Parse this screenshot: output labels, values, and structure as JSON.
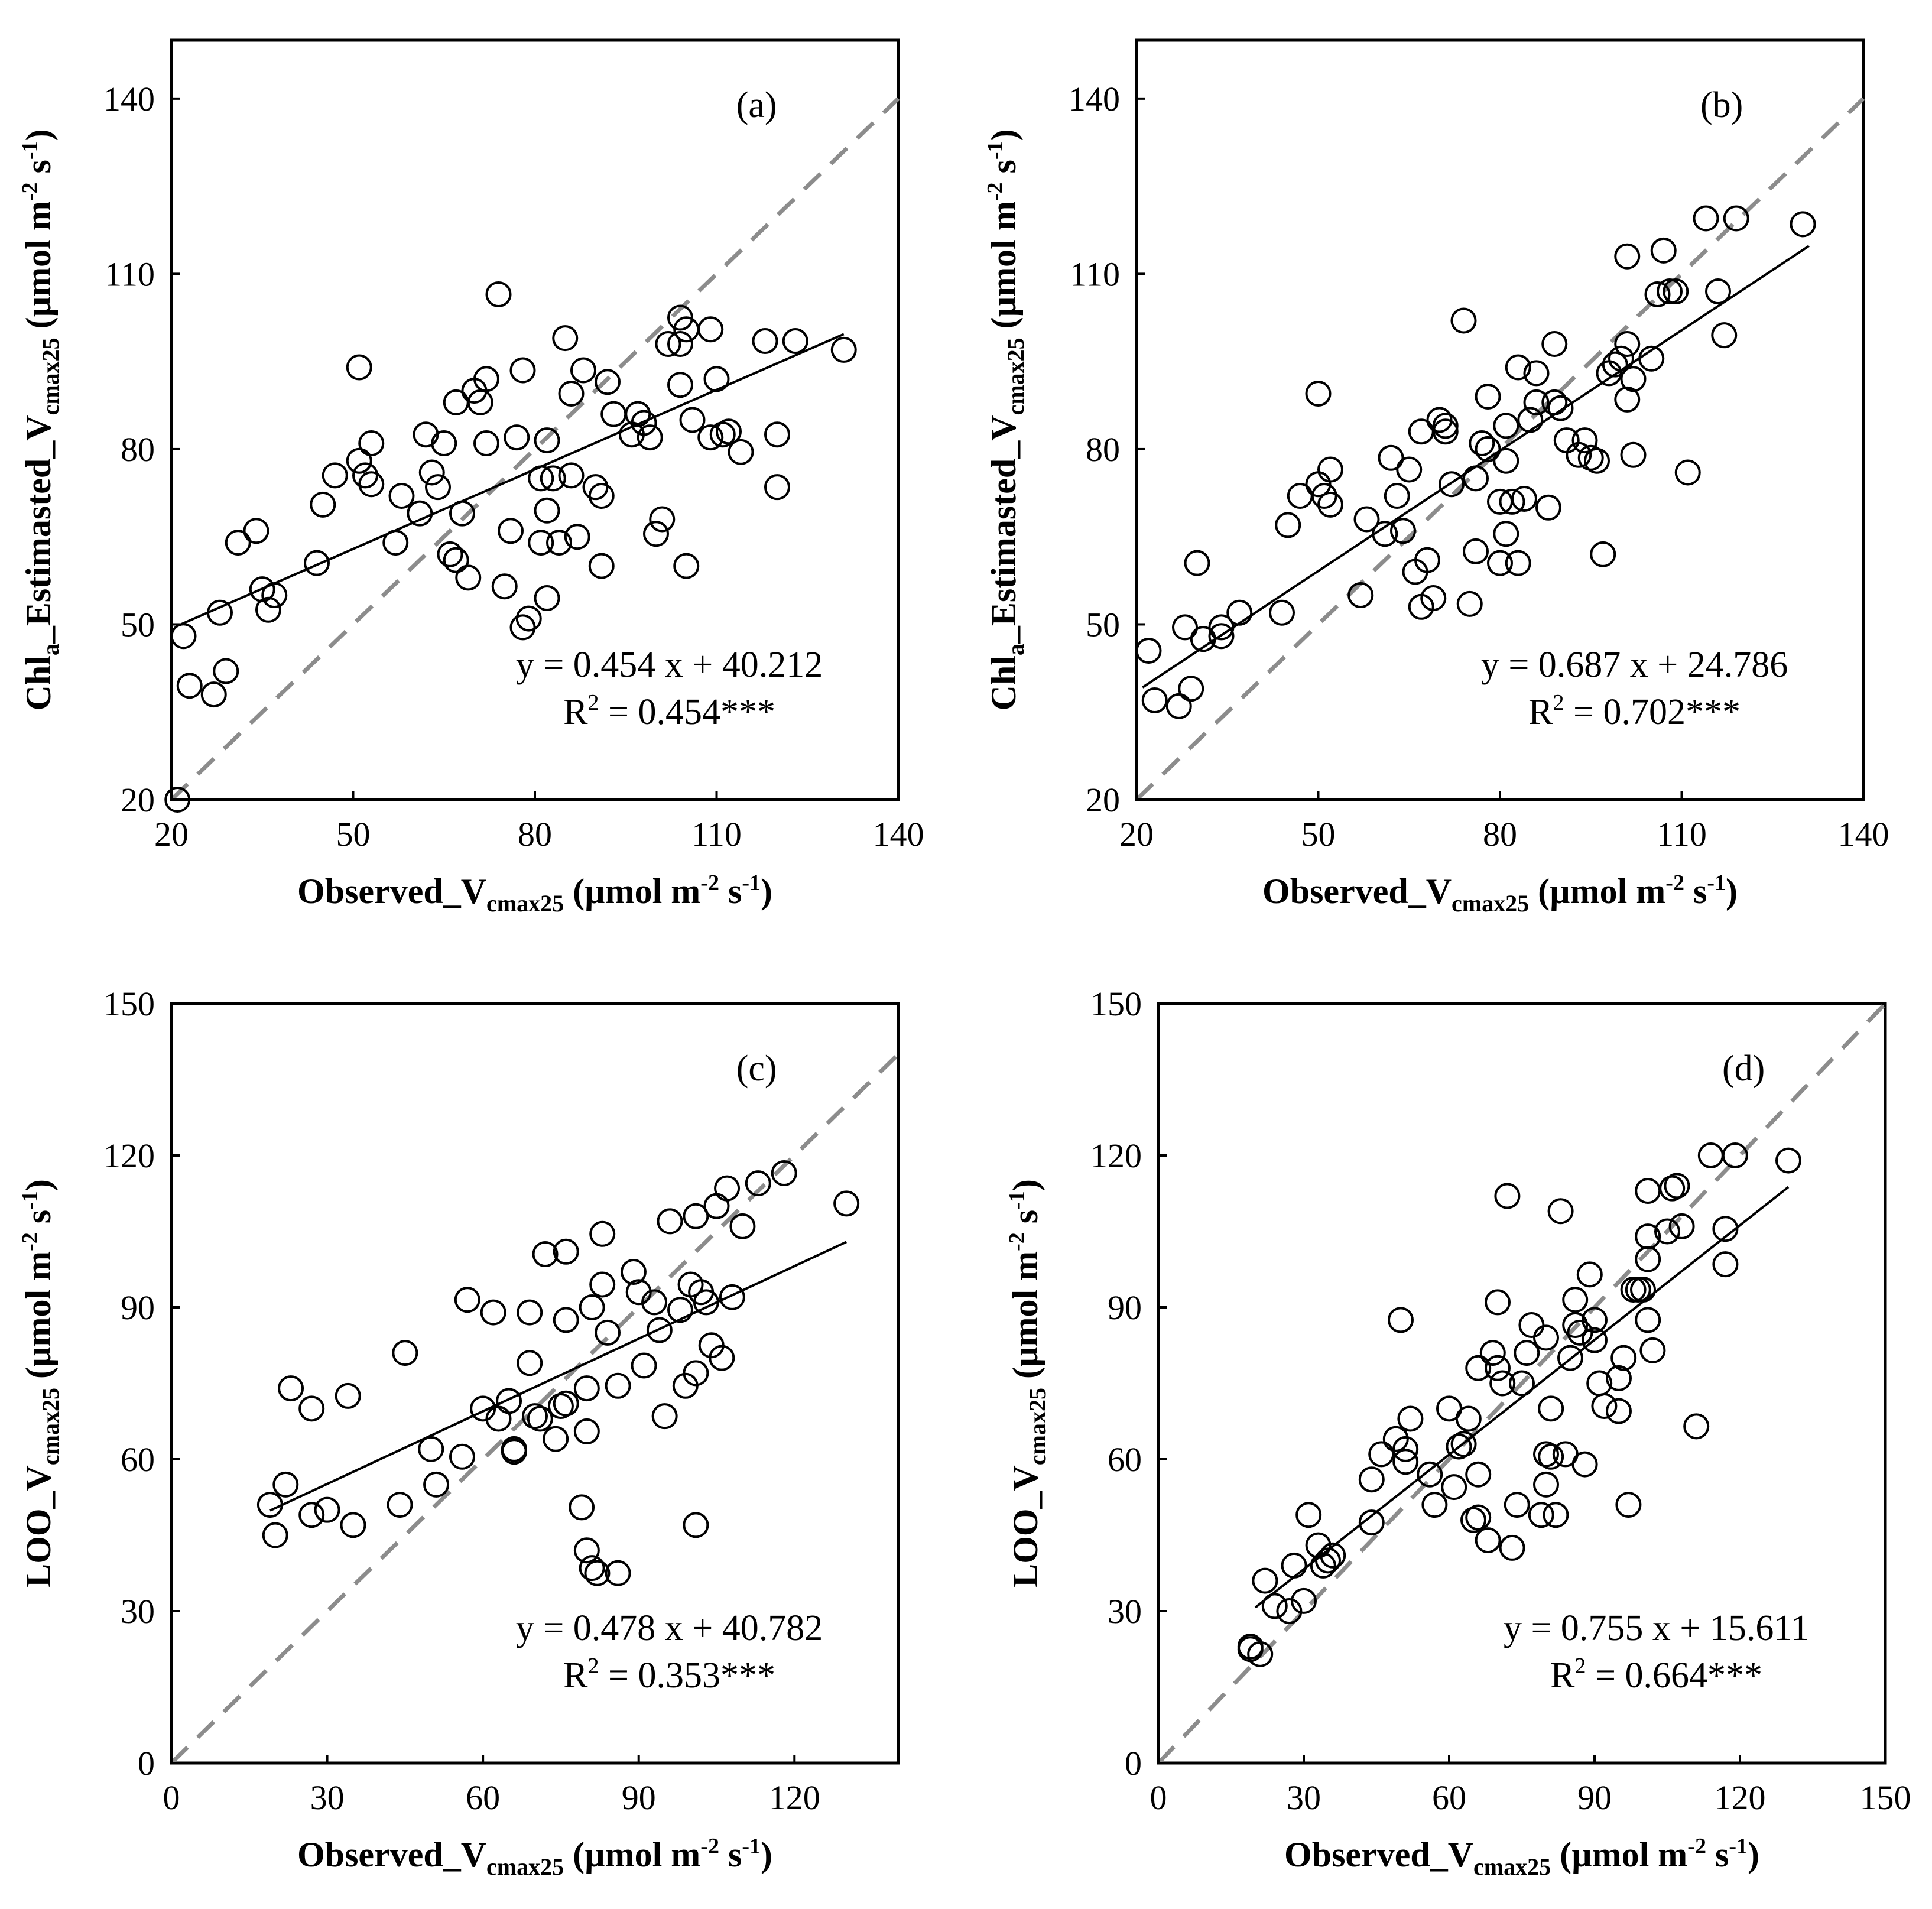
{
  "chart_data": [
    {
      "type": "scatter",
      "panel_label": "(a)",
      "xlabel": {
        "main": "Observed_V",
        "sub": "cmax25",
        "unit_pre": " (µmol m",
        "sup1": "-2",
        "unit_mid": " s",
        "sup2": "-1",
        "unit_post": ")"
      },
      "ylabel": {
        "main": "Chl",
        "sub0": "a",
        "main2": "_Estimasted_V",
        "sub": "cmax25",
        "unit_pre": " (µmol m",
        "sup1": "-2",
        "unit_mid": " s",
        "sup2": "-1",
        "unit_post": ")"
      },
      "xlim": [
        20,
        140
      ],
      "ylim": [
        20,
        150
      ],
      "xticks": [
        "20",
        "50",
        "80",
        "110",
        "140"
      ],
      "yticks": [
        "20",
        "50",
        "80",
        "110",
        "140"
      ],
      "regression": {
        "slope": 0.454,
        "intercept": 40.212,
        "x_range": [
          21,
          131
        ]
      },
      "equation": "y = 0.454 x + 40.212",
      "r2": {
        "prefix": "R",
        "sup": "2",
        "value": " = 0.454***"
      },
      "points": [
        [
          21,
          20
        ],
        [
          22,
          48
        ],
        [
          23,
          39.5
        ],
        [
          27,
          38
        ],
        [
          28,
          52
        ],
        [
          29,
          42
        ],
        [
          31,
          64
        ],
        [
          34,
          66
        ],
        [
          35,
          56
        ],
        [
          36,
          52.5
        ],
        [
          37,
          55
        ],
        [
          44,
          60.5
        ],
        [
          45,
          70.5
        ],
        [
          47,
          75.5
        ],
        [
          51,
          78
        ],
        [
          51,
          94
        ],
        [
          52,
          75.5
        ],
        [
          53,
          74
        ],
        [
          53,
          81
        ],
        [
          57,
          64
        ],
        [
          58,
          72
        ],
        [
          61,
          69
        ],
        [
          62,
          82.5
        ],
        [
          63,
          76
        ],
        [
          64,
          73.5
        ],
        [
          65,
          81
        ],
        [
          66,
          62
        ],
        [
          67,
          88
        ],
        [
          67,
          61
        ],
        [
          68,
          69
        ],
        [
          69,
          58
        ],
        [
          70,
          90
        ],
        [
          71,
          88
        ],
        [
          72,
          92
        ],
        [
          72,
          81
        ],
        [
          74,
          106.5
        ],
        [
          75,
          56.5
        ],
        [
          76,
          66
        ],
        [
          77,
          82
        ],
        [
          78,
          49.5
        ],
        [
          78,
          93.5
        ],
        [
          79,
          51
        ],
        [
          81,
          64
        ],
        [
          81,
          75
        ],
        [
          82,
          54.5
        ],
        [
          82,
          69.5
        ],
        [
          82,
          81.5
        ],
        [
          83,
          75
        ],
        [
          84,
          64
        ],
        [
          85,
          99
        ],
        [
          86,
          75.5
        ],
        [
          86,
          89.5
        ],
        [
          87,
          65
        ],
        [
          88,
          93.5
        ],
        [
          90,
          73.5
        ],
        [
          91,
          60
        ],
        [
          91,
          72
        ],
        [
          92,
          91.5
        ],
        [
          93,
          86
        ],
        [
          96,
          82.5
        ],
        [
          97,
          86
        ],
        [
          98,
          84.5
        ],
        [
          99,
          82
        ],
        [
          100,
          65.5
        ],
        [
          101,
          68
        ],
        [
          102,
          98
        ],
        [
          104,
          91
        ],
        [
          104,
          98
        ],
        [
          104,
          102.5
        ],
        [
          105,
          60
        ],
        [
          105,
          100.5
        ],
        [
          106,
          85
        ],
        [
          109,
          82
        ],
        [
          109,
          100.5
        ],
        [
          110,
          92
        ],
        [
          111,
          82.5
        ],
        [
          112,
          83
        ],
        [
          114,
          79.5
        ],
        [
          118,
          98.5
        ],
        [
          120,
          73.5
        ],
        [
          120,
          82.5
        ],
        [
          123,
          98.5
        ],
        [
          131,
          97
        ]
      ]
    },
    {
      "type": "scatter",
      "panel_label": "(b)",
      "xlabel": {
        "main": "Observed_V",
        "sub": "cmax25",
        "unit_pre": " (µmol m",
        "sup1": "-2",
        "unit_mid": " s",
        "sup2": "-1",
        "unit_post": ")"
      },
      "ylabel": {
        "main": "Chl",
        "sub0": "a",
        "main2": "_Estimasted_V",
        "sub": "cmax25",
        "unit_pre": " (µmol m",
        "sup1": "-2",
        "unit_mid": " s",
        "sup2": "-1",
        "unit_post": ")"
      },
      "xlim": [
        20,
        140
      ],
      "ylim": [
        20,
        150
      ],
      "xticks": [
        "20",
        "50",
        "80",
        "110",
        "140"
      ],
      "yticks": [
        "20",
        "50",
        "80",
        "110",
        "140"
      ],
      "regression": {
        "slope": 0.687,
        "intercept": 24.786,
        "x_range": [
          21,
          131
        ]
      },
      "equation": "y = 0.687 x + 24.786",
      "r2": {
        "prefix": "R",
        "sup": "2",
        "value": " = 0.702***"
      },
      "points": [
        [
          22,
          45.5
        ],
        [
          23,
          37
        ],
        [
          27,
          36
        ],
        [
          28,
          49.5
        ],
        [
          29,
          39
        ],
        [
          30,
          60.5
        ],
        [
          31,
          47.5
        ],
        [
          34,
          48
        ],
        [
          34,
          49.5
        ],
        [
          37,
          52
        ],
        [
          44,
          52
        ],
        [
          45,
          67
        ],
        [
          47,
          72
        ],
        [
          50,
          74
        ],
        [
          50,
          89.5
        ],
        [
          51,
          72
        ],
        [
          52,
          76.5
        ],
        [
          52,
          70.5
        ],
        [
          57,
          55
        ],
        [
          58,
          68
        ],
        [
          61,
          65.5
        ],
        [
          62,
          78.5
        ],
        [
          63,
          72
        ],
        [
          64,
          66
        ],
        [
          65,
          76.5
        ],
        [
          66,
          59
        ],
        [
          67,
          83
        ],
        [
          67,
          53
        ],
        [
          68,
          61
        ],
        [
          69,
          54.5
        ],
        [
          70,
          85
        ],
        [
          71,
          84
        ],
        [
          71,
          83
        ],
        [
          72,
          74
        ],
        [
          74,
          102
        ],
        [
          75,
          53.5
        ],
        [
          76,
          62.5
        ],
        [
          76,
          75
        ],
        [
          77,
          81
        ],
        [
          78,
          80
        ],
        [
          78,
          89
        ],
        [
          80,
          60.5
        ],
        [
          80,
          71
        ],
        [
          81,
          65.5
        ],
        [
          81,
          84
        ],
        [
          81,
          78
        ],
        [
          82,
          71
        ],
        [
          83,
          60.5
        ],
        [
          83,
          94
        ],
        [
          84,
          71.5
        ],
        [
          85,
          85
        ],
        [
          86,
          93
        ],
        [
          86,
          88
        ],
        [
          88,
          70
        ],
        [
          89,
          88
        ],
        [
          89,
          98
        ],
        [
          90,
          87
        ],
        [
          91,
          81.5
        ],
        [
          93,
          79
        ],
        [
          94,
          81.5
        ],
        [
          95,
          78.5
        ],
        [
          96,
          78
        ],
        [
          97,
          62
        ],
        [
          98,
          93
        ],
        [
          99,
          94.5
        ],
        [
          100,
          95.5
        ],
        [
          101,
          113
        ],
        [
          101,
          98
        ],
        [
          101,
          88.5
        ],
        [
          102,
          92
        ],
        [
          102,
          79
        ],
        [
          105,
          95.5
        ],
        [
          106,
          106.5
        ],
        [
          107,
          114
        ],
        [
          108,
          107
        ],
        [
          109,
          107
        ],
        [
          111,
          76
        ],
        [
          114,
          119.5
        ],
        [
          116,
          107
        ],
        [
          117,
          99.5
        ],
        [
          119,
          119.5
        ],
        [
          130,
          118.5
        ]
      ]
    },
    {
      "type": "scatter",
      "panel_label": "(c)",
      "xlabel": {
        "main": "Observed_V",
        "sub": "cmax25",
        "unit_pre": " (µmol m",
        "sup1": "-2",
        "unit_mid": " s",
        "sup2": "-1",
        "unit_post": ")"
      },
      "ylabel": {
        "main": "LOO_V",
        "sub": "cmax25",
        "unit_pre": " (µmol m",
        "sup1": "-2",
        "unit_mid": " s",
        "sup2": "-1",
        "unit_post": ")"
      },
      "xlim": [
        0,
        140
      ],
      "ylim": [
        0,
        150
      ],
      "xticks": [
        "0",
        "30",
        "60",
        "90",
        "120"
      ],
      "yticks": [
        "0",
        "30",
        "60",
        "90",
        "120",
        "150"
      ],
      "regression": {
        "slope": 0.478,
        "intercept": 40.782,
        "x_range": [
          19,
          130
        ]
      },
      "equation": "y = 0.478 x + 40.782",
      "r2": {
        "prefix": "R",
        "sup": "2",
        "value": " = 0.353***"
      },
      "points": [
        [
          19,
          51
        ],
        [
          20,
          45
        ],
        [
          22,
          55
        ],
        [
          23,
          74
        ],
        [
          27,
          49
        ],
        [
          27,
          70
        ],
        [
          30,
          50
        ],
        [
          34,
          72.5
        ],
        [
          35,
          47
        ],
        [
          44,
          51
        ],
        [
          45,
          81
        ],
        [
          50,
          62
        ],
        [
          51,
          55
        ],
        [
          56,
          60.5
        ],
        [
          57,
          91.5
        ],
        [
          60,
          70
        ],
        [
          62,
          89
        ],
        [
          63,
          68
        ],
        [
          65,
          71.5
        ],
        [
          66,
          62
        ],
        [
          66,
          61.5
        ],
        [
          69,
          89
        ],
        [
          69,
          79
        ],
        [
          70,
          68.5
        ],
        [
          71,
          68
        ],
        [
          72,
          100.5
        ],
        [
          74,
          64
        ],
        [
          75,
          70.5
        ],
        [
          76,
          71
        ],
        [
          76,
          87.5
        ],
        [
          76,
          101
        ],
        [
          79,
          50.5
        ],
        [
          80,
          65.5
        ],
        [
          80,
          74
        ],
        [
          80,
          42
        ],
        [
          81,
          90
        ],
        [
          81,
          38.5
        ],
        [
          82,
          37.5
        ],
        [
          83,
          104.5
        ],
        [
          83,
          94.5
        ],
        [
          84,
          85
        ],
        [
          86,
          74.5
        ],
        [
          86,
          37.5
        ],
        [
          89,
          97
        ],
        [
          90,
          93
        ],
        [
          91,
          78.5
        ],
        [
          93,
          91
        ],
        [
          94,
          85.5
        ],
        [
          95,
          68.5
        ],
        [
          96,
          107
        ],
        [
          98,
          89.5
        ],
        [
          99,
          74.5
        ],
        [
          100,
          94.5
        ],
        [
          101,
          108
        ],
        [
          101,
          47
        ],
        [
          101,
          77
        ],
        [
          102,
          93
        ],
        [
          103,
          91
        ],
        [
          104,
          82.5
        ],
        [
          105,
          110
        ],
        [
          106,
          80
        ],
        [
          107,
          113.5
        ],
        [
          108,
          92
        ],
        [
          110,
          106
        ],
        [
          113,
          114.5
        ],
        [
          118,
          116.5
        ],
        [
          130,
          110.5
        ]
      ]
    },
    {
      "type": "scatter",
      "panel_label": "(d)",
      "xlabel": {
        "main": "Observed_V",
        "sub": "cmax25",
        "unit_pre": " (µmol m",
        "sup1": "-2",
        "unit_mid": " s",
        "sup2": "-1",
        "unit_post": ")"
      },
      "ylabel": {
        "main": "LOO_V",
        "sub": "cmax25",
        "unit_pre": " (µmol m",
        "sup1": "-2",
        "unit_mid": " s",
        "sup2": "-1",
        "unit_post": ")"
      },
      "xlim": [
        0,
        150
      ],
      "ylim": [
        0,
        150
      ],
      "xticks": [
        "0",
        "30",
        "60",
        "90",
        "120",
        "150"
      ],
      "yticks": [
        "0",
        "30",
        "60",
        "90",
        "120",
        "150"
      ],
      "regression": {
        "slope": 0.755,
        "intercept": 15.611,
        "x_range": [
          20,
          130
        ]
      },
      "equation": "y = 0.755 x + 15.611",
      "r2": {
        "prefix": "R",
        "sup": "2",
        "value": " = 0.664***"
      },
      "points": [
        [
          19,
          23
        ],
        [
          19,
          22.5
        ],
        [
          21,
          21.5
        ],
        [
          22,
          36
        ],
        [
          24,
          31
        ],
        [
          27,
          30
        ],
        [
          28,
          39
        ],
        [
          30,
          32
        ],
        [
          31,
          49
        ],
        [
          33,
          43
        ],
        [
          34,
          39
        ],
        [
          35,
          40
        ],
        [
          36,
          41
        ],
        [
          44,
          47.5
        ],
        [
          44,
          56
        ],
        [
          46,
          61
        ],
        [
          49,
          64
        ],
        [
          50,
          87.5
        ],
        [
          51,
          62
        ],
        [
          51,
          59.5
        ],
        [
          52,
          68
        ],
        [
          56,
          57
        ],
        [
          57,
          51
        ],
        [
          60,
          70
        ],
        [
          61,
          54.5
        ],
        [
          62,
          62.5
        ],
        [
          63,
          63
        ],
        [
          64,
          68
        ],
        [
          65,
          48
        ],
        [
          66,
          57
        ],
        [
          66,
          78
        ],
        [
          66,
          48.5
        ],
        [
          68,
          44
        ],
        [
          69,
          81
        ],
        [
          70,
          91
        ],
        [
          70,
          78
        ],
        [
          71,
          75
        ],
        [
          72,
          112
        ],
        [
          73,
          42.5
        ],
        [
          74,
          51
        ],
        [
          75,
          75
        ],
        [
          76,
          81
        ],
        [
          77,
          86.5
        ],
        [
          79,
          49
        ],
        [
          80,
          61
        ],
        [
          80,
          84
        ],
        [
          80,
          55
        ],
        [
          81,
          70
        ],
        [
          81,
          60.5
        ],
        [
          82,
          49
        ],
        [
          83,
          109
        ],
        [
          84,
          61
        ],
        [
          85,
          80
        ],
        [
          86,
          91.5
        ],
        [
          86,
          86.5
        ],
        [
          87,
          85
        ],
        [
          88,
          59
        ],
        [
          89,
          96.5
        ],
        [
          90,
          83.5
        ],
        [
          90,
          87.5
        ],
        [
          91,
          75
        ],
        [
          92,
          70.5
        ],
        [
          95,
          76
        ],
        [
          95,
          69.5
        ],
        [
          96,
          80
        ],
        [
          97,
          51
        ],
        [
          98,
          93.5
        ],
        [
          99,
          93.5
        ],
        [
          100,
          93.5
        ],
        [
          101,
          99.5
        ],
        [
          101,
          104
        ],
        [
          101,
          113
        ],
        [
          101,
          87.5
        ],
        [
          102,
          81.5
        ],
        [
          105,
          105
        ],
        [
          106,
          113.5
        ],
        [
          107,
          114
        ],
        [
          108,
          106
        ],
        [
          111,
          66.5
        ],
        [
          114,
          120
        ],
        [
          117,
          98.5
        ],
        [
          117,
          105.5
        ],
        [
          119,
          120
        ],
        [
          130,
          119
        ]
      ]
    }
  ]
}
